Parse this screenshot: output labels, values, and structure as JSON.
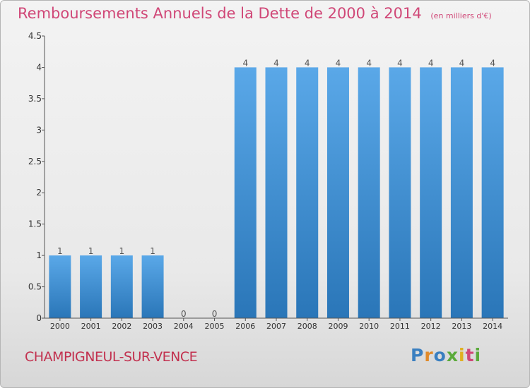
{
  "chart_data": {
    "type": "bar",
    "title": "Remboursements Annuels de la Dette de 2000 à 2014",
    "subtitle": "(en milliers d'€)",
    "categories": [
      "2000",
      "2001",
      "2002",
      "2003",
      "2004",
      "2005",
      "2006",
      "2007",
      "2008",
      "2009",
      "2010",
      "2011",
      "2012",
      "2013",
      "2014"
    ],
    "values": [
      1,
      1,
      1,
      1,
      0,
      0,
      4,
      4,
      4,
      4,
      4,
      4,
      4,
      4,
      4
    ],
    "data_labels": [
      "1",
      "1",
      "1",
      "1",
      "0",
      "0",
      "4",
      "4",
      "4",
      "4",
      "4",
      "4",
      "4",
      "4",
      "4"
    ],
    "ylim": [
      0,
      4.5
    ],
    "yticks": [
      0,
      0.5,
      1,
      1.5,
      2,
      2.5,
      3,
      3.5,
      4,
      4.5
    ],
    "ytick_labels": [
      "0",
      "0.5",
      "1",
      "1.5",
      "2",
      "2.5",
      "3",
      "3.5",
      "4",
      "4.5"
    ],
    "grid": false,
    "bar_color": "#3a8fd6"
  },
  "footer": {
    "commune": "CHAMPIGNEUL-SUR-VENCE",
    "brand": "Proxiti"
  },
  "colors": {
    "title": "#d04777",
    "commune": "#c2314f",
    "axis": "#333333",
    "brand_letters": [
      "#3a7fc0",
      "#e08a2a",
      "#3a7fc0",
      "#5aaa3a",
      "#e0b020",
      "#d04777",
      "#5aaa3a"
    ]
  }
}
